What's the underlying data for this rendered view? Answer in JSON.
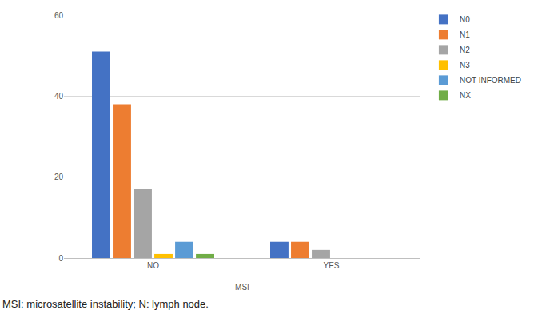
{
  "chart_data": {
    "type": "bar",
    "x_label": "MSI",
    "caption": "MSI: microsatellite instability; N: lymph node.",
    "categories": [
      "NO",
      "YES"
    ],
    "series": [
      {
        "name": "N0",
        "color": "#4472c4",
        "values": [
          51,
          4
        ]
      },
      {
        "name": "N1",
        "color": "#ed7d31",
        "values": [
          38,
          4
        ]
      },
      {
        "name": "N2",
        "color": "#a5a5a5",
        "values": [
          17,
          2
        ]
      },
      {
        "name": "N3",
        "color": "#ffc000",
        "values": [
          1,
          0
        ]
      },
      {
        "name": "NOT INFORMED",
        "color": "#5b9bd5",
        "values": [
          4,
          0
        ]
      },
      {
        "name": "NX",
        "color": "#70ad47",
        "values": [
          1,
          0
        ]
      }
    ],
    "ylim": [
      0,
      60
    ],
    "yticks": [
      0,
      20,
      40,
      60
    ],
    "grid": true,
    "legend": "top right"
  }
}
